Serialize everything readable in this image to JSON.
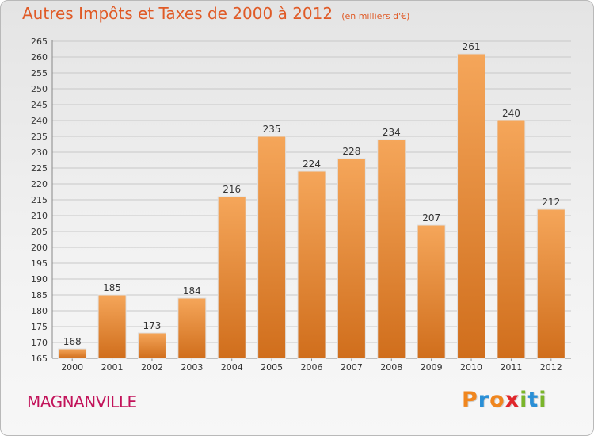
{
  "header": {
    "title": "Autres Impôts et Taxes de 2000 à 2012",
    "subtitle": "(en milliers d'€)"
  },
  "footer": {
    "commune": "MAGNANVILLE",
    "logo_text": "Proxiti",
    "logo_letters": [
      {
        "char": "P",
        "color": "#f0861e"
      },
      {
        "char": "r",
        "color": "#2a8fd6"
      },
      {
        "char": "o",
        "color": "#f0861e"
      },
      {
        "char": "x",
        "color": "#e0262b"
      },
      {
        "char": "i",
        "color": "#7ab52b"
      },
      {
        "char": "t",
        "color": "#2a8fd6"
      },
      {
        "char": "i",
        "color": "#7ab52b"
      }
    ]
  },
  "colors": {
    "title": "#e05a26",
    "commune": "#c2135a",
    "bar_top": "#f5a65a",
    "bar_bottom": "#d06e1c",
    "grid": "#c8c8c8"
  },
  "chart_data": {
    "type": "bar",
    "title": "Autres Impôts et Taxes de 2000 à 2012",
    "subtitle": "(en milliers d'€)",
    "categories": [
      "2000",
      "2001",
      "2002",
      "2003",
      "2004",
      "2005",
      "2006",
      "2007",
      "2008",
      "2009",
      "2010",
      "2011",
      "2012"
    ],
    "values": [
      168,
      185,
      173,
      184,
      216,
      235,
      224,
      228,
      234,
      207,
      261,
      240,
      212
    ],
    "ylim": [
      165,
      265
    ],
    "ytick_step": 5,
    "grid": true,
    "xlabel": "",
    "ylabel": ""
  }
}
